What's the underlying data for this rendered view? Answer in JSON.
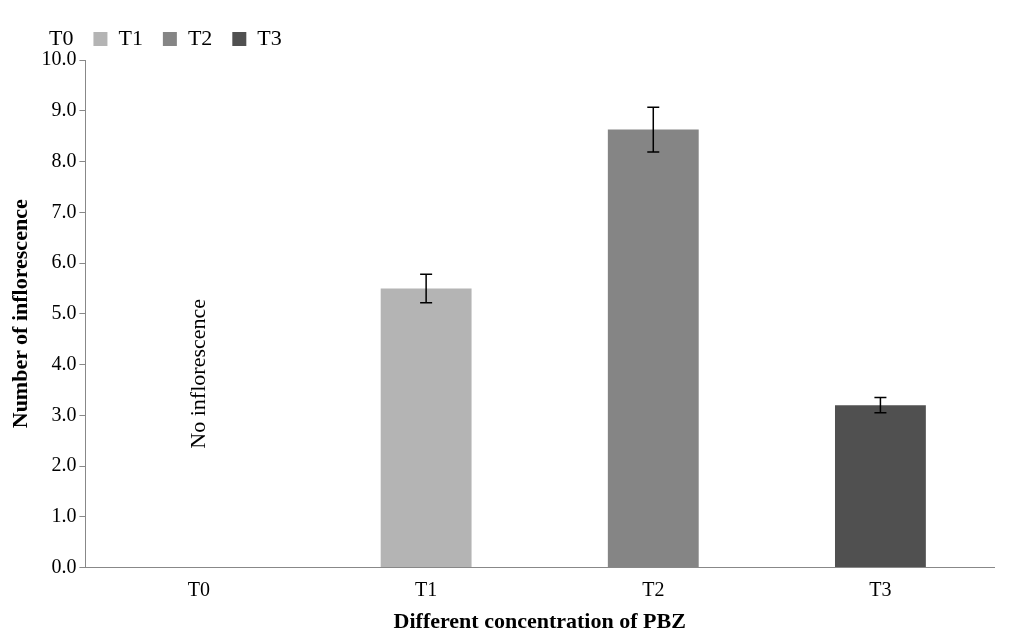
{
  "chart_data": {
    "type": "bar",
    "xlabel": "Different concentration of PBZ",
    "ylabel": "Number of inflorescence",
    "categories": [
      "T0",
      "T1",
      "T2",
      "T3"
    ],
    "series": [
      {
        "name": "T0",
        "values": [
          0,
          null,
          null,
          null
        ],
        "errors": [
          null,
          null,
          null,
          null
        ]
      },
      {
        "name": "T1",
        "color": "#b4b4b4",
        "values": [
          null,
          5.5,
          null,
          null
        ],
        "errors": [
          null,
          0.28,
          null,
          null
        ]
      },
      {
        "name": "T2",
        "color": "#858585",
        "values": [
          null,
          null,
          8.63,
          null
        ],
        "errors": [
          null,
          null,
          0.44,
          null
        ]
      },
      {
        "name": "T3",
        "color": "#505050",
        "values": [
          null,
          null,
          null,
          3.2
        ],
        "errors": [
          null,
          null,
          null,
          0.15
        ]
      }
    ],
    "ylim": [
      0,
      10
    ],
    "yticks": [
      {
        "value": 0,
        "label": "0.0"
      },
      {
        "value": 1,
        "label": "1.0"
      },
      {
        "value": 2,
        "label": "2.0"
      },
      {
        "value": 3,
        "label": "3.0"
      },
      {
        "value": 4,
        "label": "4.0"
      },
      {
        "value": 5,
        "label": "5.0"
      },
      {
        "value": 6,
        "label": "6.0"
      },
      {
        "value": 7,
        "label": "7.0"
      },
      {
        "value": 8,
        "label": "8.0"
      },
      {
        "value": 9,
        "label": "9.0"
      },
      {
        "value": 10,
        "label": "10.0"
      }
    ],
    "annotations": [
      "No inflorescence"
    ],
    "grid": false,
    "legend": "top left"
  }
}
